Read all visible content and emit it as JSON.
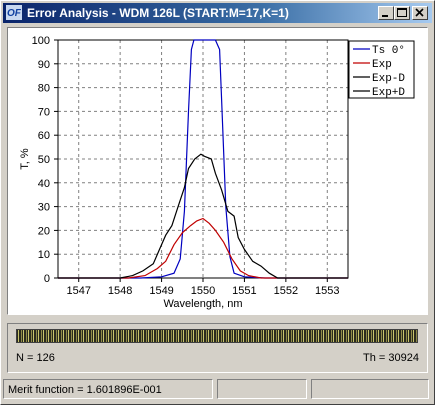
{
  "window": {
    "title": "Error Analysis - WDM 126L (START:M=17,K=1)"
  },
  "chart_data": {
    "type": "line",
    "xlabel": "Wavelength, nm",
    "ylabel": "T, %",
    "xlim": [
      1546.5,
      1553.5
    ],
    "ylim": [
      0,
      100
    ],
    "x_ticks": [
      1547,
      1548,
      1549,
      1550,
      1551,
      1552,
      1553
    ],
    "y_ticks": [
      0,
      10,
      20,
      30,
      40,
      50,
      60,
      70,
      80,
      90,
      100
    ],
    "grid": true,
    "legend_position": "top-right",
    "series": [
      {
        "name": "Ts 0°",
        "color": "#0000c0",
        "x": [
          1546.5,
          1548.5,
          1549.0,
          1549.3,
          1549.45,
          1549.55,
          1549.65,
          1549.72,
          1549.78,
          1550.0,
          1550.3,
          1550.4,
          1550.45,
          1550.55,
          1550.65,
          1550.75,
          1551.0,
          1551.5,
          1553.5
        ],
        "y": [
          0,
          0,
          0.5,
          2,
          8,
          28,
          70,
          96,
          100,
          100,
          100,
          96,
          75,
          30,
          9,
          2,
          0.5,
          0,
          0
        ]
      },
      {
        "name": "Exp",
        "color": "#c00000",
        "x": [
          1546.5,
          1548.2,
          1548.6,
          1548.9,
          1549.1,
          1549.3,
          1549.5,
          1549.7,
          1549.85,
          1550.0,
          1550.15,
          1550.3,
          1550.5,
          1550.7,
          1550.9,
          1551.1,
          1551.4,
          1553.5
        ],
        "y": [
          0,
          0,
          1,
          4,
          7,
          14,
          19,
          22,
          24,
          25,
          23,
          20,
          15,
          8,
          3,
          1,
          0,
          0
        ]
      },
      {
        "name": "Exp-D",
        "color": "#000000",
        "x": [
          1546.5,
          1548.0,
          1548.3,
          1548.55,
          1548.8,
          1548.95,
          1549.1,
          1549.25,
          1549.4,
          1549.55,
          1549.65,
          1549.8,
          1549.95,
          1550.05,
          1550.2,
          1550.3,
          1550.45,
          1550.6,
          1550.75,
          1550.85,
          1551.0,
          1551.2,
          1551.4,
          1551.6,
          1551.8,
          1553.5
        ],
        "y": [
          0,
          0,
          1,
          3,
          6,
          12,
          18,
          22,
          30,
          38,
          46,
          50,
          52,
          51,
          50,
          44,
          37,
          28,
          26,
          17,
          12,
          7,
          5,
          2,
          0,
          0
        ]
      }
    ],
    "legend_extra": [
      "Exp+D"
    ]
  },
  "panel": {
    "n_label": "N = 126",
    "th_label": "Th = 30924"
  },
  "status": {
    "merit": "Merit function =  1.601896E-001"
  }
}
